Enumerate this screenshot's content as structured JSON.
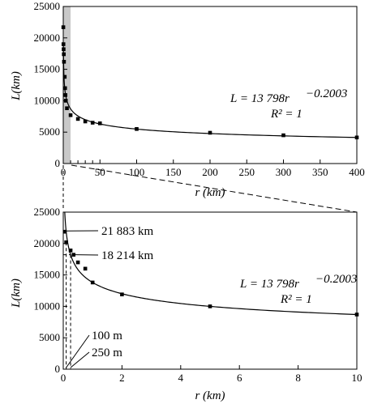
{
  "chart_data": [
    {
      "type": "line",
      "xlabel": "r (km)",
      "ylabel": "L(km)",
      "xlim": [
        0,
        400
      ],
      "ylim": [
        0,
        25000
      ],
      "x_ticks": [
        "0",
        "50",
        "100",
        "150",
        "200",
        "250",
        "300",
        "350",
        "400"
      ],
      "y_ticks": [
        "0",
        "5000",
        "10000",
        "15000",
        "20000",
        "25000"
      ],
      "shaded_range_x": [
        0,
        10
      ],
      "points": {
        "x": [
          0.1,
          0.25,
          0.5,
          0.75,
          1,
          2,
          2.5,
          3,
          3.5,
          5,
          10,
          20,
          30,
          40,
          50,
          100,
          200,
          300,
          400
        ],
        "y": [
          21700,
          19000,
          18200,
          17400,
          16200,
          13800,
          12000,
          10900,
          10000,
          8800,
          7700,
          7100,
          6700,
          6500,
          6400,
          5500,
          4900,
          4500,
          4150
        ]
      },
      "fit": {
        "a": 13798,
        "b": -0.2003
      },
      "equation": "L = 13 798r",
      "exponent": "−0.2003",
      "r2": "R² = 1"
    },
    {
      "type": "line",
      "xlabel": "r (km)",
      "ylabel": "L(km)",
      "xlim": [
        0,
        10
      ],
      "ylim": [
        0,
        25000
      ],
      "x_ticks": [
        "0",
        "2",
        "4",
        "6",
        "8",
        "10"
      ],
      "y_ticks": [
        "0",
        "5000",
        "10000",
        "15000",
        "20000",
        "25000"
      ],
      "points": {
        "x": [
          0.05,
          0.1,
          0.25,
          0.35,
          0.5,
          0.75,
          1,
          2,
          5,
          10
        ],
        "y": [
          21883,
          20200,
          18900,
          18214,
          17000,
          16000,
          13800,
          11900,
          10000,
          8700
        ]
      },
      "fit": {
        "a": 13798,
        "b": -0.2003
      },
      "equation": "L = 13 798r",
      "exponent": "−0.2003",
      "r2": "R² = 1",
      "annotations": [
        "21 883 km",
        "18 214 km",
        "100 m",
        "250 m"
      ]
    }
  ]
}
